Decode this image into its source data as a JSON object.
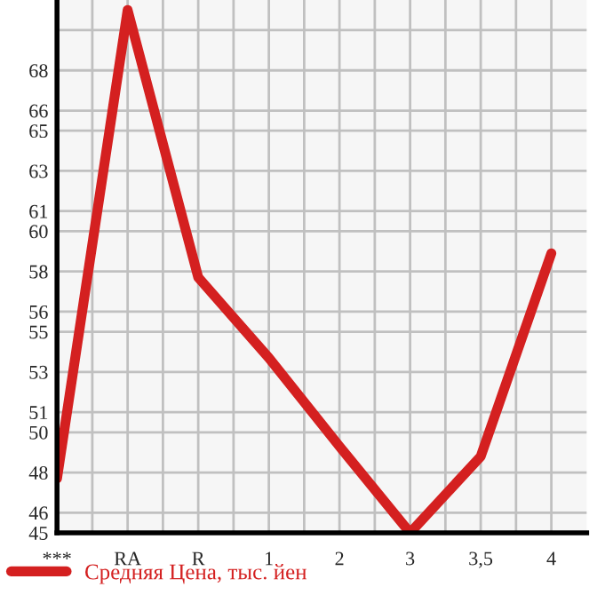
{
  "chart_data": {
    "type": "line",
    "categories": [
      "***",
      "RA",
      "R",
      "1",
      "2",
      "3",
      "3,5",
      "4"
    ],
    "series": [
      {
        "name": "Средняя Цена, тыс. йен",
        "color": "#d42020",
        "values": [
          47.7,
          71.0,
          57.7,
          53.7,
          49.3,
          45.0,
          48.8,
          58.9
        ]
      }
    ],
    "ylim": [
      45,
      71.5
    ],
    "yticks": [
      45,
      46,
      48,
      50,
      51,
      53,
      55,
      56,
      58,
      60,
      61,
      63,
      65,
      66,
      68,
      {
        "value": 70,
        "label": null
      }
    ],
    "grid": true,
    "legend": "bottom",
    "marker": "none",
    "line_style": "solid"
  }
}
